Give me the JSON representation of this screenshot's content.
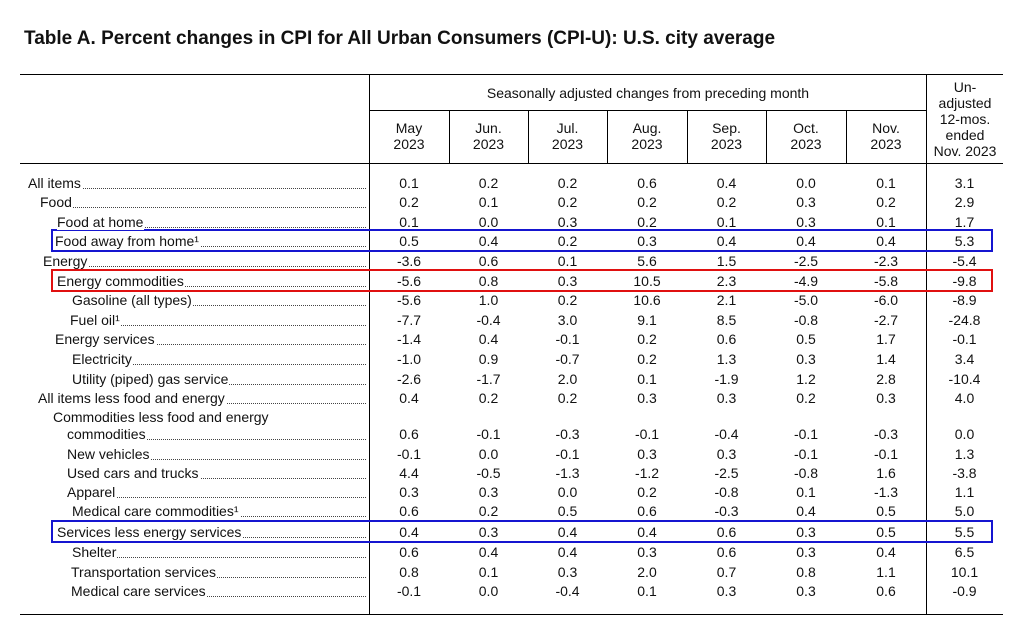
{
  "title": "Table A. Percent changes in CPI for All Urban Consumers (CPI-U): U.S. city average",
  "header": {
    "group_label": "Seasonally adjusted changes from preceding month",
    "months": [
      {
        "m": "May",
        "y": "2023"
      },
      {
        "m": "Jun.",
        "y": "2023"
      },
      {
        "m": "Jul.",
        "y": "2023"
      },
      {
        "m": "Aug.",
        "y": "2023"
      },
      {
        "m": "Sep.",
        "y": "2023"
      },
      {
        "m": "Oct.",
        "y": "2023"
      },
      {
        "m": "Nov.",
        "y": "2023"
      }
    ],
    "unadjusted_top": [
      "Un-",
      "adjusted"
    ],
    "unadjusted_bottom": [
      "12-mos.",
      "ended",
      "Nov. 2023"
    ]
  },
  "rows": [
    {
      "label": "All items",
      "values": [
        "0.1",
        "0.2",
        "0.2",
        "0.6",
        "0.4",
        "0.0",
        "0.1",
        "3.1"
      ]
    },
    {
      "label": "Food",
      "values": [
        "0.2",
        "0.1",
        "0.2",
        "0.2",
        "0.2",
        "0.3",
        "0.2",
        "2.9"
      ]
    },
    {
      "label": "Food at home",
      "values": [
        "0.1",
        "0.0",
        "0.3",
        "0.2",
        "0.1",
        "0.3",
        "0.1",
        "1.7"
      ]
    },
    {
      "label": "Food away from home¹",
      "values": [
        "0.5",
        "0.4",
        "0.2",
        "0.3",
        "0.4",
        "0.4",
        "0.4",
        "5.3"
      ],
      "highlight": "#1515d0"
    },
    {
      "label": "Energy",
      "values": [
        "-3.6",
        "0.6",
        "0.1",
        "5.6",
        "1.5",
        "-2.5",
        "-2.3",
        "-5.4"
      ]
    },
    {
      "label": "Energy commodities",
      "values": [
        "-5.6",
        "0.8",
        "0.3",
        "10.5",
        "2.3",
        "-4.9",
        "-5.8",
        "-9.8"
      ],
      "highlight": "#e01010"
    },
    {
      "label": "Gasoline (all types)",
      "values": [
        "-5.6",
        "1.0",
        "0.2",
        "10.6",
        "2.1",
        "-5.0",
        "-6.0",
        "-8.9"
      ]
    },
    {
      "label": "Fuel oil¹",
      "values": [
        "-7.7",
        "-0.4",
        "3.0",
        "9.1",
        "8.5",
        "-0.8",
        "-2.7",
        "-24.8"
      ]
    },
    {
      "label": "Energy services",
      "values": [
        "-1.4",
        "0.4",
        "-0.1",
        "0.2",
        "0.6",
        "0.5",
        "1.7",
        "-0.1"
      ]
    },
    {
      "label": "Electricity",
      "values": [
        "-1.0",
        "0.9",
        "-0.7",
        "0.2",
        "1.3",
        "0.3",
        "1.4",
        "3.4"
      ]
    },
    {
      "label": "Utility (piped) gas service",
      "values": [
        "-2.6",
        "-1.7",
        "2.0",
        "0.1",
        "-1.9",
        "1.2",
        "2.8",
        "-10.4"
      ]
    },
    {
      "label": "All items less food and energy",
      "values": [
        "0.4",
        "0.2",
        "0.2",
        "0.3",
        "0.3",
        "0.2",
        "0.3",
        "4.0"
      ]
    },
    {
      "label": "Commodities less food and energy",
      "values": null
    },
    {
      "label": "commodities",
      "values": [
        "0.6",
        "-0.1",
        "-0.3",
        "-0.1",
        "-0.4",
        "-0.1",
        "-0.3",
        "0.0"
      ]
    },
    {
      "label": "New vehicles",
      "values": [
        "-0.1",
        "0.0",
        "-0.1",
        "0.3",
        "0.3",
        "-0.1",
        "-0.1",
        "1.3"
      ]
    },
    {
      "label": "Used cars and trucks",
      "values": [
        "4.4",
        "-0.5",
        "-1.3",
        "-1.2",
        "-2.5",
        "-0.8",
        "1.6",
        "-3.8"
      ]
    },
    {
      "label": "Apparel",
      "values": [
        "0.3",
        "0.3",
        "0.0",
        "0.2",
        "-0.8",
        "0.1",
        "-1.3",
        "1.1"
      ]
    },
    {
      "label": "Medical care commodities¹",
      "values": [
        "0.6",
        "0.2",
        "0.5",
        "0.6",
        "-0.3",
        "0.4",
        "0.5",
        "5.0"
      ]
    },
    {
      "label": "Services less energy services",
      "values": [
        "0.4",
        "0.3",
        "0.4",
        "0.4",
        "0.6",
        "0.3",
        "0.5",
        "5.5"
      ],
      "highlight": "#1515d0"
    },
    {
      "label": "Shelter",
      "values": [
        "0.6",
        "0.4",
        "0.4",
        "0.3",
        "0.6",
        "0.3",
        "0.4",
        "6.5"
      ]
    },
    {
      "label": "Transportation services",
      "values": [
        "0.8",
        "0.1",
        "0.3",
        "2.0",
        "0.7",
        "0.8",
        "1.1",
        "10.1"
      ]
    },
    {
      "label": "Medical care services",
      "values": [
        "-0.1",
        "0.0",
        "-0.4",
        "0.1",
        "0.3",
        "0.3",
        "0.6",
        "-0.9"
      ]
    }
  ]
}
